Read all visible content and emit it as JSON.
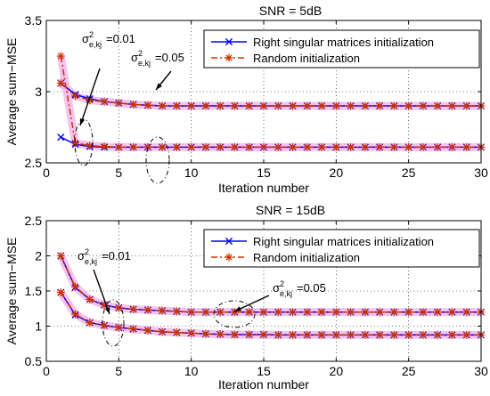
{
  "chart_data": [
    {
      "type": "line",
      "title": "SNR = 5dB",
      "xlabel": "Iteration number",
      "ylabel": "Average sum−MSE",
      "xlim": [
        0,
        30
      ],
      "ylim": [
        2.5,
        3.5
      ],
      "xticks": [
        0,
        5,
        10,
        15,
        20,
        25,
        30
      ],
      "yticks": [
        2.5,
        3,
        3.5
      ],
      "grid": true,
      "legend_position": "top-right",
      "legend": [
        "Right singular matrices initialization",
        "Random initialization"
      ],
      "series": [
        {
          "name": "Right singular matrices initialization",
          "group": "0.05",
          "color": "#0000ff",
          "marker": "x",
          "linestyle": "solid",
          "x": [
            1,
            2,
            3,
            4,
            5,
            6,
            7,
            8,
            9,
            10,
            11,
            12,
            13,
            14,
            15,
            16,
            17,
            18,
            19,
            20,
            21,
            22,
            23,
            24,
            25,
            26,
            27,
            28,
            29,
            30
          ],
          "y": [
            3.06,
            2.98,
            2.95,
            2.93,
            2.92,
            2.91,
            2.905,
            2.9,
            2.9,
            2.9,
            2.9,
            2.9,
            2.9,
            2.9,
            2.9,
            2.9,
            2.9,
            2.9,
            2.9,
            2.9,
            2.9,
            2.9,
            2.9,
            2.9,
            2.9,
            2.9,
            2.9,
            2.9,
            2.9,
            2.9
          ]
        },
        {
          "name": "Random initialization",
          "group": "0.05",
          "color": "#cc3300",
          "marker": "*",
          "linestyle": "dashdot",
          "x": [
            1,
            2,
            3,
            4,
            5,
            6,
            7,
            8,
            9,
            10,
            11,
            12,
            13,
            14,
            15,
            16,
            17,
            18,
            19,
            20,
            21,
            22,
            23,
            24,
            25,
            26,
            27,
            28,
            29,
            30
          ],
          "y": [
            3.06,
            2.97,
            2.94,
            2.93,
            2.92,
            2.91,
            2.905,
            2.9,
            2.9,
            2.9,
            2.9,
            2.9,
            2.9,
            2.9,
            2.9,
            2.9,
            2.9,
            2.9,
            2.9,
            2.9,
            2.9,
            2.9,
            2.9,
            2.9,
            2.9,
            2.9,
            2.9,
            2.9,
            2.9,
            2.9
          ]
        },
        {
          "name": "Right singular matrices initialization",
          "group": "0.01",
          "color": "#0000ff",
          "marker": "x",
          "linestyle": "solid",
          "x": [
            1,
            2,
            3,
            4,
            5,
            6,
            7,
            8,
            9,
            10,
            11,
            12,
            13,
            14,
            15,
            16,
            17,
            18,
            19,
            20,
            21,
            22,
            23,
            24,
            25,
            26,
            27,
            28,
            29,
            30
          ],
          "y": [
            2.68,
            2.63,
            2.615,
            2.61,
            2.61,
            2.61,
            2.61,
            2.61,
            2.61,
            2.61,
            2.61,
            2.61,
            2.61,
            2.61,
            2.61,
            2.61,
            2.61,
            2.61,
            2.61,
            2.61,
            2.61,
            2.61,
            2.61,
            2.61,
            2.61,
            2.61,
            2.61,
            2.61,
            2.61,
            2.61
          ]
        },
        {
          "name": "Random initialization",
          "group": "0.01",
          "color": "#cc3300",
          "marker": "*",
          "linestyle": "dashdot",
          "x": [
            1,
            2,
            3,
            4,
            5,
            6,
            7,
            8,
            9,
            10,
            11,
            12,
            13,
            14,
            15,
            16,
            17,
            18,
            19,
            20,
            21,
            22,
            23,
            24,
            25,
            26,
            27,
            28,
            29,
            30
          ],
          "y": [
            3.25,
            2.64,
            2.62,
            2.615,
            2.61,
            2.61,
            2.61,
            2.61,
            2.61,
            2.61,
            2.61,
            2.61,
            2.61,
            2.61,
            2.61,
            2.61,
            2.61,
            2.61,
            2.61,
            2.61,
            2.61,
            2.61,
            2.61,
            2.61,
            2.61,
            2.61,
            2.61,
            2.61,
            2.61,
            2.61
          ]
        }
      ],
      "annotations": [
        {
          "base": "σ",
          "sup": "2",
          "sub": "e,kj",
          "value": "=0.01"
        },
        {
          "base": "σ",
          "sup": "2",
          "sub": "e,kj",
          "value": "=0.05"
        }
      ]
    },
    {
      "type": "line",
      "title": "SNR = 15dB",
      "xlabel": "Iteration number",
      "ylabel": "Average sum−MSE",
      "xlim": [
        0,
        30
      ],
      "ylim": [
        0.5,
        2.5
      ],
      "xticks": [
        0,
        5,
        10,
        15,
        20,
        25,
        30
      ],
      "yticks": [
        0.5,
        1,
        1.5,
        2,
        2.5
      ],
      "grid": true,
      "legend_position": "top-right",
      "legend": [
        "Right singular matrices initialization",
        "Random initialization"
      ],
      "series": [
        {
          "name": "Right singular matrices initialization",
          "group": "0.05",
          "color": "#0000ff",
          "marker": "x",
          "linestyle": "solid",
          "x": [
            1,
            2,
            3,
            4,
            5,
            6,
            7,
            8,
            9,
            10,
            11,
            12,
            13,
            14,
            15,
            16,
            17,
            18,
            19,
            20,
            21,
            22,
            23,
            24,
            25,
            26,
            27,
            28,
            29,
            30
          ],
          "y": [
            2.0,
            1.55,
            1.38,
            1.3,
            1.26,
            1.24,
            1.23,
            1.22,
            1.21,
            1.2,
            1.2,
            1.2,
            1.2,
            1.2,
            1.2,
            1.2,
            1.2,
            1.2,
            1.2,
            1.2,
            1.2,
            1.2,
            1.2,
            1.2,
            1.2,
            1.2,
            1.2,
            1.2,
            1.2,
            1.2
          ]
        },
        {
          "name": "Random initialization",
          "group": "0.05",
          "color": "#cc3300",
          "marker": "*",
          "linestyle": "dashdot",
          "x": [
            1,
            2,
            3,
            4,
            5,
            6,
            7,
            8,
            9,
            10,
            11,
            12,
            13,
            14,
            15,
            16,
            17,
            18,
            19,
            20,
            21,
            22,
            23,
            24,
            25,
            26,
            27,
            28,
            29,
            30
          ],
          "y": [
            2.0,
            1.56,
            1.38,
            1.3,
            1.26,
            1.24,
            1.23,
            1.22,
            1.21,
            1.2,
            1.2,
            1.2,
            1.2,
            1.2,
            1.2,
            1.2,
            1.2,
            1.2,
            1.2,
            1.2,
            1.2,
            1.2,
            1.2,
            1.2,
            1.2,
            1.2,
            1.2,
            1.2,
            1.2,
            1.2
          ]
        },
        {
          "name": "Right singular matrices initialization",
          "group": "0.01",
          "color": "#0000ff",
          "marker": "x",
          "linestyle": "solid",
          "x": [
            1,
            2,
            3,
            4,
            5,
            6,
            7,
            8,
            9,
            10,
            11,
            12,
            13,
            14,
            15,
            16,
            17,
            18,
            19,
            20,
            21,
            22,
            23,
            24,
            25,
            26,
            27,
            28,
            29,
            30
          ],
          "y": [
            1.48,
            1.16,
            1.05,
            1.01,
            0.98,
            0.96,
            0.94,
            0.92,
            0.91,
            0.9,
            0.89,
            0.885,
            0.88,
            0.88,
            0.88,
            0.875,
            0.875,
            0.875,
            0.875,
            0.875,
            0.875,
            0.875,
            0.875,
            0.875,
            0.875,
            0.875,
            0.875,
            0.875,
            0.875,
            0.875
          ]
        },
        {
          "name": "Random initialization",
          "group": "0.01",
          "color": "#cc3300",
          "marker": "*",
          "linestyle": "dashdot",
          "x": [
            1,
            2,
            3,
            4,
            5,
            6,
            7,
            8,
            9,
            10,
            11,
            12,
            13,
            14,
            15,
            16,
            17,
            18,
            19,
            20,
            21,
            22,
            23,
            24,
            25,
            26,
            27,
            28,
            29,
            30
          ],
          "y": [
            1.48,
            1.17,
            1.05,
            1.01,
            0.98,
            0.96,
            0.94,
            0.92,
            0.91,
            0.9,
            0.89,
            0.885,
            0.88,
            0.88,
            0.88,
            0.875,
            0.875,
            0.875,
            0.875,
            0.875,
            0.875,
            0.875,
            0.875,
            0.875,
            0.875,
            0.875,
            0.875,
            0.875,
            0.875,
            0.875
          ]
        }
      ],
      "annotations": [
        {
          "base": "σ",
          "sup": "2",
          "sub": "e,kj",
          "value": "=0.01"
        },
        {
          "base": "σ",
          "sup": "2",
          "sub": "e,kj",
          "value": "=0.05"
        }
      ]
    }
  ],
  "colors": {
    "rsm": "#0000ff",
    "random": "#cc3300",
    "highlight": "#f2b8ec"
  }
}
